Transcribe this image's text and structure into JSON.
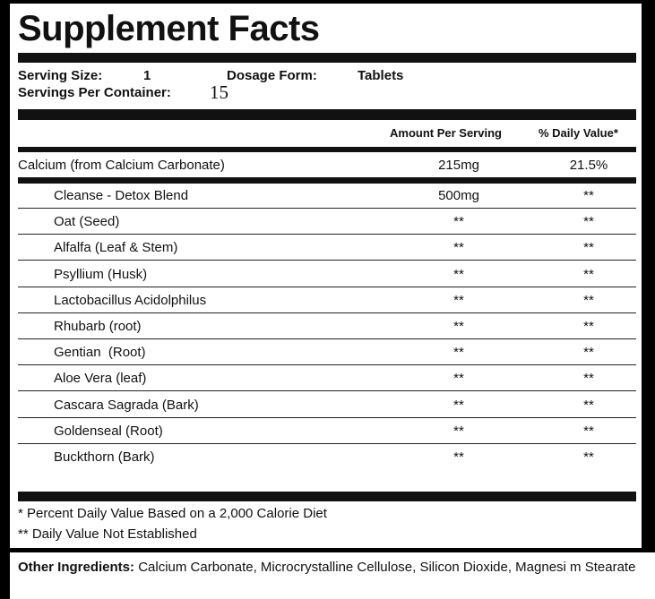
{
  "title": "Supplement Facts",
  "serving": {
    "size_label": "Serving Size:",
    "size": "1",
    "form_label": "Dosage Form:",
    "form": "Tablets",
    "per_container_label": "Servings Per Container:",
    "per_container": "15"
  },
  "table": {
    "headers": [
      "Amount Per Serving",
      "% Daily Value*"
    ],
    "main_row": [
      "Calcium (from Calcium Carbonate)",
      "215mg",
      "21.5%"
    ],
    "blend_rows": [
      [
        "Cleanse - Detox Blend",
        "500mg",
        "**"
      ],
      [
        "Oat (Seed)",
        "**",
        "**"
      ],
      [
        "Alfalfa (Leaf & Stem)",
        "**",
        "**"
      ],
      [
        "Psyllium (Husk)",
        "**",
        "**"
      ],
      [
        "Lactobacillus Acidolphilus",
        "**",
        "**"
      ],
      [
        "Rhubarb (root)",
        "**",
        "**"
      ],
      [
        "Gentian  (Root)",
        "**",
        "**"
      ],
      [
        "Aloe Vera (leaf)",
        "**",
        "**"
      ],
      [
        "Cascara Sagrada (Bark)",
        "**",
        "**"
      ],
      [
        "Goldenseal (Root)",
        "**",
        "**"
      ],
      [
        "Buckthorn (Bark)",
        "**",
        "**"
      ]
    ]
  },
  "footnotes": [
    "* Percent Daily Value Based on a 2,000 Calorie Diet",
    "** Daily Value Not Established"
  ],
  "other_ingredients": {
    "label": "Other Ingredients:",
    "text": "Calcium Carbonate, Microcrystalline Cellulose, Silicon Dioxide, Magnesi m Stearate"
  }
}
